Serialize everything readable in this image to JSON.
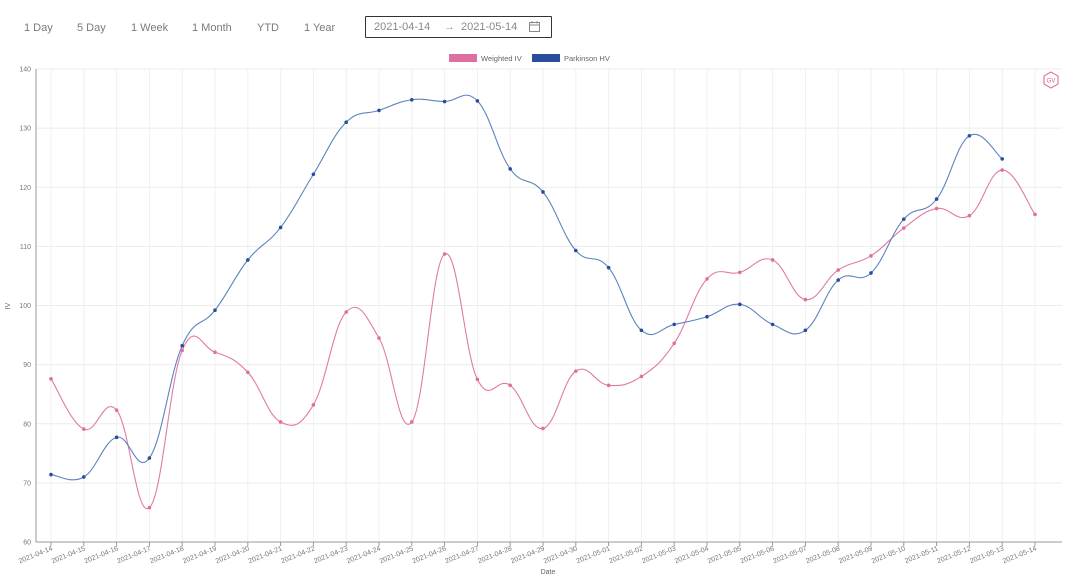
{
  "toolbar": {
    "ranges": [
      "1 Day",
      "5 Day",
      "1 Week",
      "1 Month",
      "YTD",
      "1 Year"
    ],
    "date_start": "2021-04-14",
    "date_arrow": "→",
    "date_end": "2021-05-14",
    "calendar_icon": "calendar-icon"
  },
  "badge_icon": "hexagon-logo-icon",
  "chart_data": {
    "type": "line",
    "xlabel": "Date",
    "ylabel": "IV",
    "ylim": [
      60,
      140
    ],
    "yticks": [
      60,
      70,
      80,
      90,
      100,
      110,
      120,
      130,
      140
    ],
    "grid": true,
    "legend_position": "top-center",
    "categories": [
      "2021-04-14",
      "2021-04-15",
      "2021-04-16",
      "2021-04-17",
      "2021-04-18",
      "2021-04-19",
      "2021-04-20",
      "2021-04-21",
      "2021-04-22",
      "2021-04-23",
      "2021-04-24",
      "2021-04-25",
      "2021-04-26",
      "2021-04-27",
      "2021-04-28",
      "2021-04-29",
      "2021-04-30",
      "2021-05-01",
      "2021-05-02",
      "2021-05-03",
      "2021-05-04",
      "2021-05-05",
      "2021-05-06",
      "2021-05-07",
      "2021-05-08",
      "2021-05-09",
      "2021-05-10",
      "2021-05-11",
      "2021-05-12",
      "2021-05-13",
      "2021-05-14"
    ],
    "series": [
      {
        "name": "Weighted IV",
        "color": "#e07aa6",
        "legend_color": "#de6fa1",
        "values": [
          87.6,
          79.1,
          82.3,
          65.8,
          92.4,
          92.1,
          88.7,
          80.3,
          83.2,
          98.9,
          94.5,
          80.3,
          108.7,
          87.5,
          86.5,
          79.2,
          88.9,
          86.5,
          88.0,
          93.6,
          104.5,
          105.6,
          107.7,
          101.0,
          106.0,
          108.4,
          113.1,
          116.4,
          115.2,
          122.9,
          115.4
        ]
      },
      {
        "name": "Parkinson HV",
        "color": "#5b84bd",
        "legend_color": "#2a4d9b",
        "values": [
          71.4,
          71.0,
          77.7,
          74.2,
          93.2,
          99.2,
          107.7,
          113.2,
          122.2,
          131.0,
          133.0,
          134.8,
          134.5,
          134.6,
          123.1,
          119.2,
          109.3,
          106.4,
          95.8,
          96.8,
          98.1,
          100.2,
          96.8,
          95.8,
          104.3,
          105.5,
          114.6,
          118.0,
          128.7,
          124.8,
          null
        ]
      }
    ]
  }
}
